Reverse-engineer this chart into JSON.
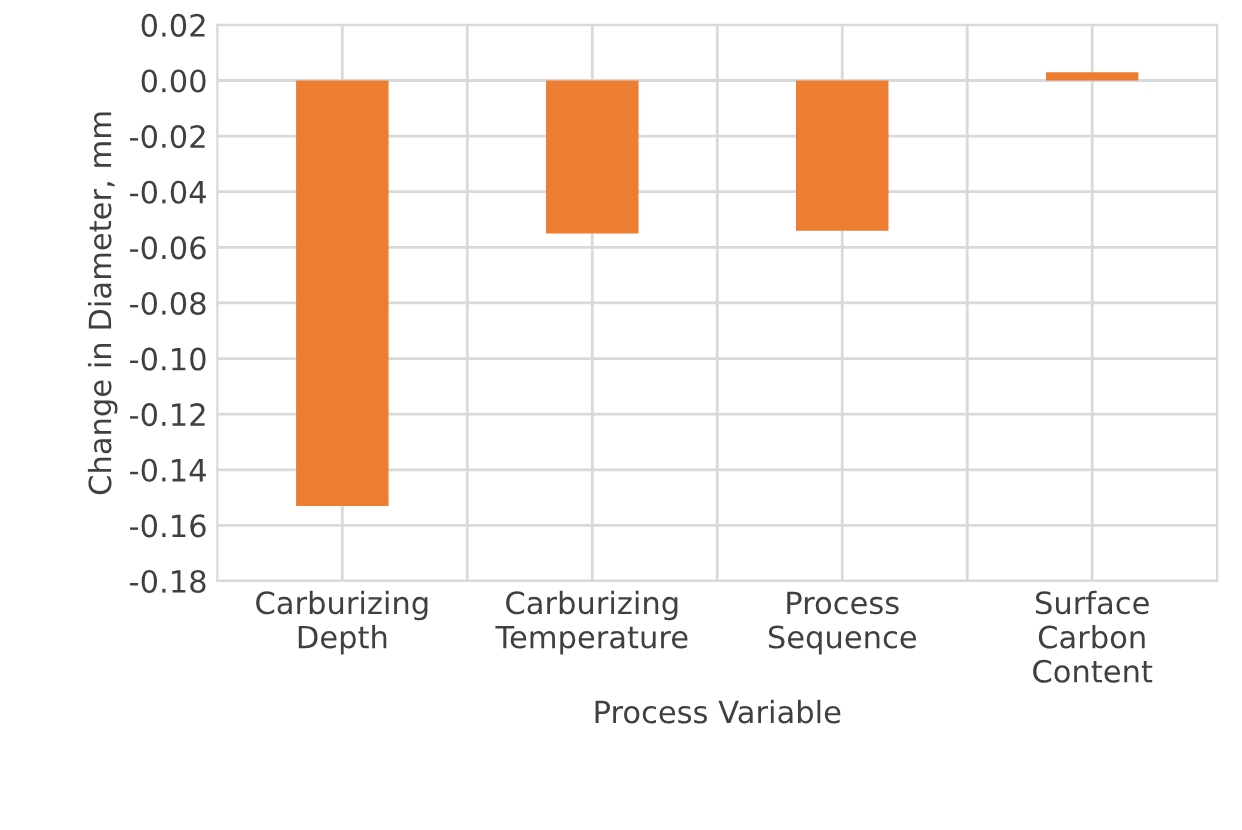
{
  "chart_data": {
    "type": "bar",
    "xlabel": "Process Variable",
    "ylabel": "Change in Diameter, mm",
    "categories": [
      "Carburizing\nDepth",
      "Carburizing\nTemperature",
      "Process\nSequence",
      "Surface\nCarbon\nContent"
    ],
    "values": [
      -0.153,
      -0.055,
      -0.054,
      0.003
    ],
    "color": "#ed7d31",
    "ylim": [
      -0.18,
      0.02
    ],
    "yticks": [
      {
        "value": -0.18,
        "label": "-0.18"
      },
      {
        "value": -0.16,
        "label": "-0.16"
      },
      {
        "value": -0.14,
        "label": "-0.14"
      },
      {
        "value": -0.12,
        "label": "-0.12"
      },
      {
        "value": -0.1,
        "label": "-0.10"
      },
      {
        "value": -0.08,
        "label": "-0.08"
      },
      {
        "value": -0.06,
        "label": "-0.06"
      },
      {
        "value": -0.04,
        "label": "-0.04"
      },
      {
        "value": -0.02,
        "label": "-0.02"
      },
      {
        "value": 0,
        "label": "0.00"
      },
      {
        "value": 0.02,
        "label": "0.02"
      }
    ],
    "grid": true
  }
}
